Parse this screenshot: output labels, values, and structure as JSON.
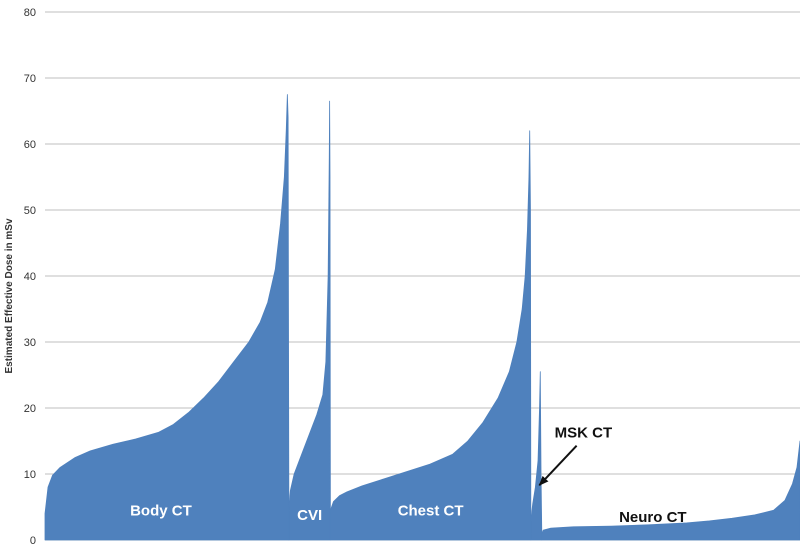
{
  "chart_data": {
    "type": "area",
    "title": "",
    "xlabel": "",
    "ylabel": "Estimated Effective Dose in mSv",
    "ylim": [
      0,
      80
    ],
    "yticks": [
      0,
      10,
      20,
      30,
      40,
      50,
      60,
      70,
      80
    ],
    "grid": true,
    "legend": "none",
    "colors": {
      "fill": "#4f81bd",
      "grid": "#bfbfbf",
      "group_label": "#ffffff",
      "annotation": "#111111"
    },
    "x_range": [
      0,
      100
    ],
    "series": [
      {
        "label": "Body CT",
        "label_y": 4.5,
        "points": [
          [
            0,
            4
          ],
          [
            0.4,
            8
          ],
          [
            1,
            9.8
          ],
          [
            2,
            11
          ],
          [
            4,
            12.5
          ],
          [
            6,
            13.5
          ],
          [
            9,
            14.5
          ],
          [
            12,
            15.3
          ],
          [
            15,
            16.3
          ],
          [
            17,
            17.5
          ],
          [
            19,
            19.3
          ],
          [
            21,
            21.5
          ],
          [
            23,
            24
          ],
          [
            25,
            27
          ],
          [
            27,
            30
          ],
          [
            28.5,
            33
          ],
          [
            29.5,
            36
          ],
          [
            30.5,
            41
          ],
          [
            31.2,
            48
          ],
          [
            31.7,
            55
          ],
          [
            31.95,
            62
          ],
          [
            32.1,
            67.5
          ],
          [
            32.2,
            64
          ],
          [
            32.3,
            5
          ]
        ]
      },
      {
        "label": "CVI",
        "label_y": 3.8,
        "points": [
          [
            32.3,
            5
          ],
          [
            32.5,
            7.5
          ],
          [
            33,
            10
          ],
          [
            34,
            13
          ],
          [
            35,
            16
          ],
          [
            36,
            19
          ],
          [
            36.8,
            22
          ],
          [
            37.2,
            27
          ],
          [
            37.5,
            40
          ],
          [
            37.65,
            58
          ],
          [
            37.7,
            66.5
          ],
          [
            37.75,
            55
          ],
          [
            37.8,
            4.5
          ]
        ]
      },
      {
        "label": "Chest CT",
        "label_y": 4.5,
        "points": [
          [
            37.8,
            4.5
          ],
          [
            38.2,
            5.8
          ],
          [
            39,
            6.7
          ],
          [
            40,
            7.3
          ],
          [
            42,
            8.2
          ],
          [
            45,
            9.3
          ],
          [
            48,
            10.4
          ],
          [
            51,
            11.5
          ],
          [
            54,
            13
          ],
          [
            56,
            15
          ],
          [
            58,
            17.8
          ],
          [
            60,
            21.5
          ],
          [
            61.5,
            25.5
          ],
          [
            62.5,
            30
          ],
          [
            63.2,
            35
          ],
          [
            63.6,
            40
          ],
          [
            63.9,
            47
          ],
          [
            64.1,
            55
          ],
          [
            64.2,
            62
          ],
          [
            64.3,
            50
          ],
          [
            64.35,
            3
          ]
        ]
      },
      {
        "label": "MSK CT",
        "label_y": 0,
        "points": [
          [
            64.35,
            3
          ],
          [
            64.6,
            5.5
          ],
          [
            64.95,
            8
          ],
          [
            65.3,
            12
          ],
          [
            65.5,
            20
          ],
          [
            65.6,
            25.5
          ],
          [
            65.7,
            10
          ],
          [
            65.8,
            1
          ]
        ]
      },
      {
        "label": "Neuro CT",
        "label_y": 3.5,
        "points": [
          [
            65.8,
            1
          ],
          [
            66,
            1.5
          ],
          [
            67,
            1.8
          ],
          [
            70,
            2
          ],
          [
            75,
            2.1
          ],
          [
            80,
            2.3
          ],
          [
            85,
            2.6
          ],
          [
            88,
            2.9
          ],
          [
            91,
            3.3
          ],
          [
            94,
            3.8
          ],
          [
            96.5,
            4.5
          ],
          [
            98,
            6
          ],
          [
            99,
            8.5
          ],
          [
            99.6,
            11
          ],
          [
            100,
            15
          ],
          [
            100,
            0
          ]
        ]
      }
    ],
    "annotations": [
      {
        "text": "MSK CT",
        "points_to_series": "MSK CT",
        "text_x": 67.5,
        "text_y": 15.5
      }
    ]
  }
}
